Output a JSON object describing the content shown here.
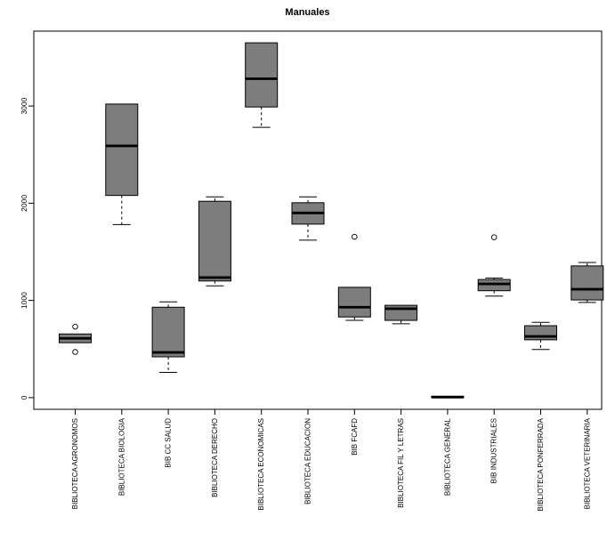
{
  "chart_data": {
    "type": "boxplot",
    "title": "Manuales",
    "xlabel": "",
    "ylabel": "",
    "grid": false,
    "legend": "none",
    "ylim": [
      -120,
      3770
    ],
    "yticks": [
      0,
      1000,
      2000,
      3000
    ],
    "box_fill": "#7d7d7d",
    "axis_color": "#000000",
    "categories": [
      "BIBLIOTECA AGRONOMOS",
      "BIBLIOTECA BIOLOGIA",
      "BIB CC SALUD",
      "BIBLIOTECA DERECHO",
      "BIBLIOTECA ECONOMICAS",
      "BIBLIOTECA EDUCACION",
      "BIB FCAFD",
      "BIBLIOTECA FIL Y LETRAS",
      "BIBLIOTECA GENERAL",
      "BIB INDUSTRIALES",
      "BIBLIOTECA PONFERRADA",
      "BIBLIOTECA VETERINARIA"
    ],
    "boxes": [
      {
        "min": 565,
        "q1": 565,
        "median": 610,
        "q3": 655,
        "max": 655,
        "outliers": [
          730,
          470
        ]
      },
      {
        "min": 1780,
        "q1": 2080,
        "median": 2590,
        "q3": 3020,
        "max": 3020,
        "outliers": []
      },
      {
        "min": 260,
        "q1": 420,
        "median": 465,
        "q3": 930,
        "max": 985,
        "outliers": []
      },
      {
        "min": 1150,
        "q1": 1200,
        "median": 1235,
        "q3": 2020,
        "max": 2065,
        "outliers": []
      },
      {
        "min": 2780,
        "q1": 2990,
        "median": 3280,
        "q3": 3650,
        "max": 3650,
        "outliers": []
      },
      {
        "min": 1620,
        "q1": 1785,
        "median": 1900,
        "q3": 2005,
        "max": 2065,
        "outliers": []
      },
      {
        "min": 795,
        "q1": 830,
        "median": 930,
        "q3": 1135,
        "max": 1135,
        "outliers": [
          1655
        ]
      },
      {
        "min": 760,
        "q1": 795,
        "median": 915,
        "q3": 950,
        "max": 950,
        "outliers": []
      },
      {
        "min": 0,
        "q1": 0,
        "median": 5,
        "q3": 15,
        "max": 15,
        "outliers": []
      },
      {
        "min": 1045,
        "q1": 1100,
        "median": 1170,
        "q3": 1215,
        "max": 1230,
        "outliers": [
          1650
        ]
      },
      {
        "min": 495,
        "q1": 595,
        "median": 630,
        "q3": 740,
        "max": 775,
        "outliers": []
      },
      {
        "min": 980,
        "q1": 1005,
        "median": 1115,
        "q3": 1355,
        "max": 1390,
        "outliers": []
      }
    ]
  }
}
